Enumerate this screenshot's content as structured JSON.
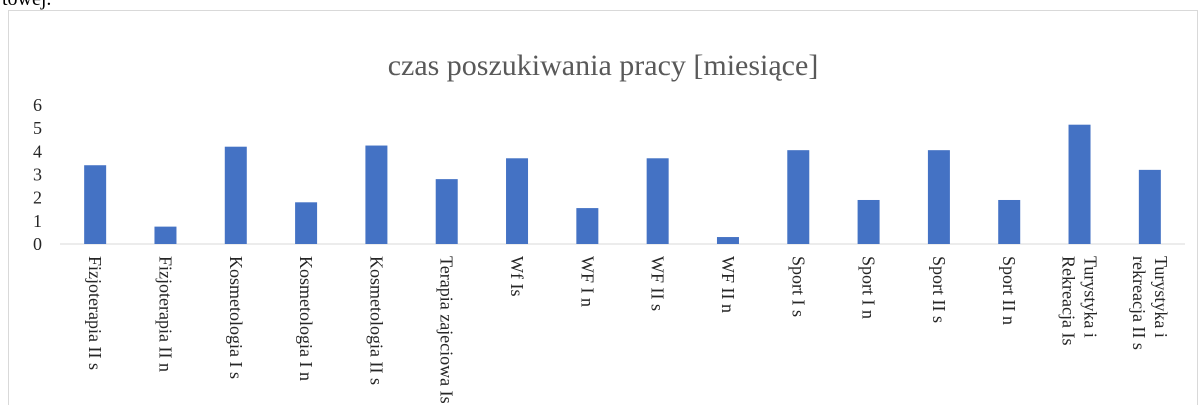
{
  "page_text": "towej.",
  "chart_data": {
    "type": "bar",
    "title": "czas poszukiwania pracy [miesiące]",
    "categories": [
      "Fizjoterapia II s",
      "Fizjoterapia II n",
      "Kosmetologia I s",
      "Kosmetologia I n",
      "Kosmetologia II s",
      "Terapia zajeciowa Is",
      "Wf Is",
      "WF I n",
      "WF II s",
      "WF II n",
      "Sport I s",
      "Sport I n",
      "Sport II s",
      "Sport II n",
      "Turystyka i Rekreacja Is",
      "Turystyka i rekreacja II s"
    ],
    "values": [
      3.4,
      0.75,
      4.2,
      1.8,
      4.25,
      2.8,
      3.7,
      1.55,
      3.7,
      0.3,
      4.05,
      1.9,
      4.05,
      1.9,
      5.15,
      3.2
    ],
    "color": "#4472c4",
    "ylim": [
      0,
      6
    ],
    "yticks": [
      0,
      1,
      2,
      3,
      4,
      5,
      6
    ],
    "grid": false
  }
}
